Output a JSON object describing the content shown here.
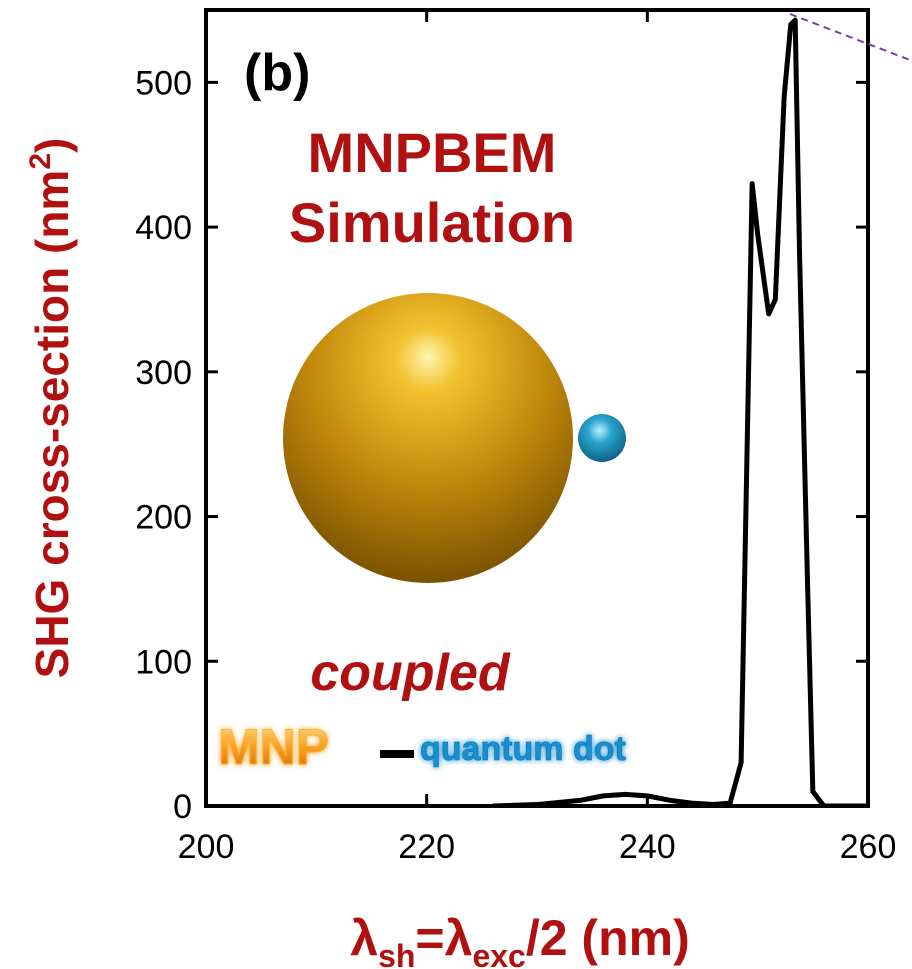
{
  "chart_data": {
    "type": "line",
    "panel_label": "(b)",
    "title_lines": [
      "MNPBEM",
      "Simulation"
    ],
    "ylabel": "SHG cross-section (nm",
    "ylabel_sup": "2",
    "ylabel_tail": ")",
    "xlabel": {
      "lambda1": "λ",
      "sub1": "sh",
      "mid": "=λ",
      "sub2": "exc",
      "tail": "/2  (nm)"
    },
    "xlim": [
      200,
      260
    ],
    "ylim": [
      0,
      550
    ],
    "xticks": [
      200,
      220,
      240,
      260
    ],
    "yticks": [
      0,
      100,
      200,
      300,
      400,
      500
    ],
    "series": [
      {
        "color": "#000000",
        "x": [
          226,
          230,
          234,
          236,
          238,
          240,
          242,
          244,
          246,
          247.5,
          248.5,
          249.5,
          250,
          251,
          251.6,
          252.4,
          253,
          253.4,
          253.8,
          254.5,
          255,
          256,
          260
        ],
        "y": [
          0,
          1,
          4,
          7,
          8,
          7,
          4,
          2,
          1,
          2,
          30,
          430,
          395,
          340,
          350,
          490,
          540,
          543,
          380,
          160,
          10,
          0,
          0
        ]
      }
    ],
    "reference_line": {
      "color": "#7a3fa8",
      "style": "dashed"
    },
    "annotations": {
      "coupled": "coupled",
      "mnp": "MNP",
      "dash": "–",
      "quantum_dot": "quantum dot"
    },
    "inset": {
      "large_sphere_color": "#c8900a",
      "small_sphere_color": "#1a8fb8"
    }
  }
}
